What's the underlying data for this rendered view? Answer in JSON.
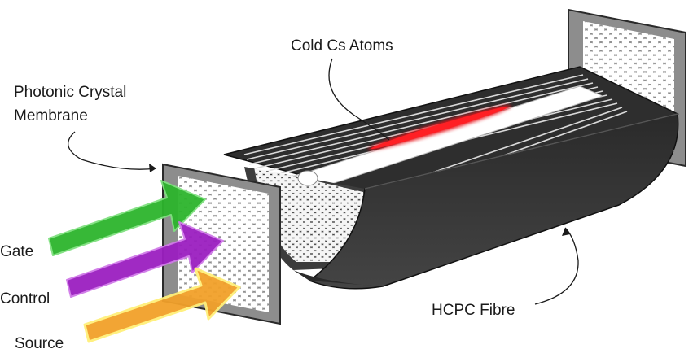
{
  "labels": {
    "cold_atoms": "Cold Cs Atoms",
    "membrane_line1": "Photonic Crystal",
    "membrane_line2": "Membrane",
    "fibre": "HCPC Fibre",
    "gate": "Gate",
    "control": "Control",
    "source": "Source"
  },
  "colors": {
    "gate_arrow": "#2db52d",
    "control_arrow": "#9b1fc0",
    "source_arrow": "#f2a12a",
    "atom_cloud": "#e8141a",
    "fibre_body": "#3a3a3a",
    "membrane": "#8d8d8d"
  },
  "icons": {
    "gate": "arrow-right-icon",
    "control": "arrow-right-icon",
    "source": "arrow-right-icon"
  }
}
